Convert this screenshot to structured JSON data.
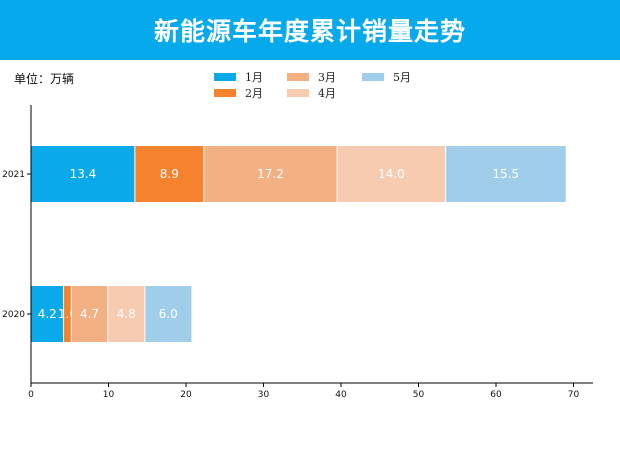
{
  "header": {
    "title": "新能源车年度累计销量走势",
    "unit_label": "单位：万辆"
  },
  "colors": {
    "title_bar": "#06a9ec",
    "axis": "#000000"
  },
  "chart_data": {
    "type": "bar",
    "orientation": "horizontal",
    "stacked": true,
    "categories": [
      "2021",
      "2020"
    ],
    "series": [
      {
        "name": "1月",
        "color": "#0aa9ea",
        "values": [
          13.4,
          4.2
        ]
      },
      {
        "name": "2月",
        "color": "#f5832d",
        "values": [
          8.9,
          1.0
        ]
      },
      {
        "name": "3月",
        "color": "#f3b083",
        "values": [
          17.2,
          4.7
        ]
      },
      {
        "name": "4月",
        "color": "#f6cbb0",
        "values": [
          14.0,
          4.8
        ]
      },
      {
        "name": "5月",
        "color": "#9fcdea",
        "values": [
          15.5,
          6.0
        ]
      }
    ],
    "xlim": [
      0,
      72
    ],
    "xticks": [
      0,
      10,
      20,
      30,
      40,
      50,
      60,
      70
    ],
    "grid": false,
    "legend_position": "top-center"
  }
}
